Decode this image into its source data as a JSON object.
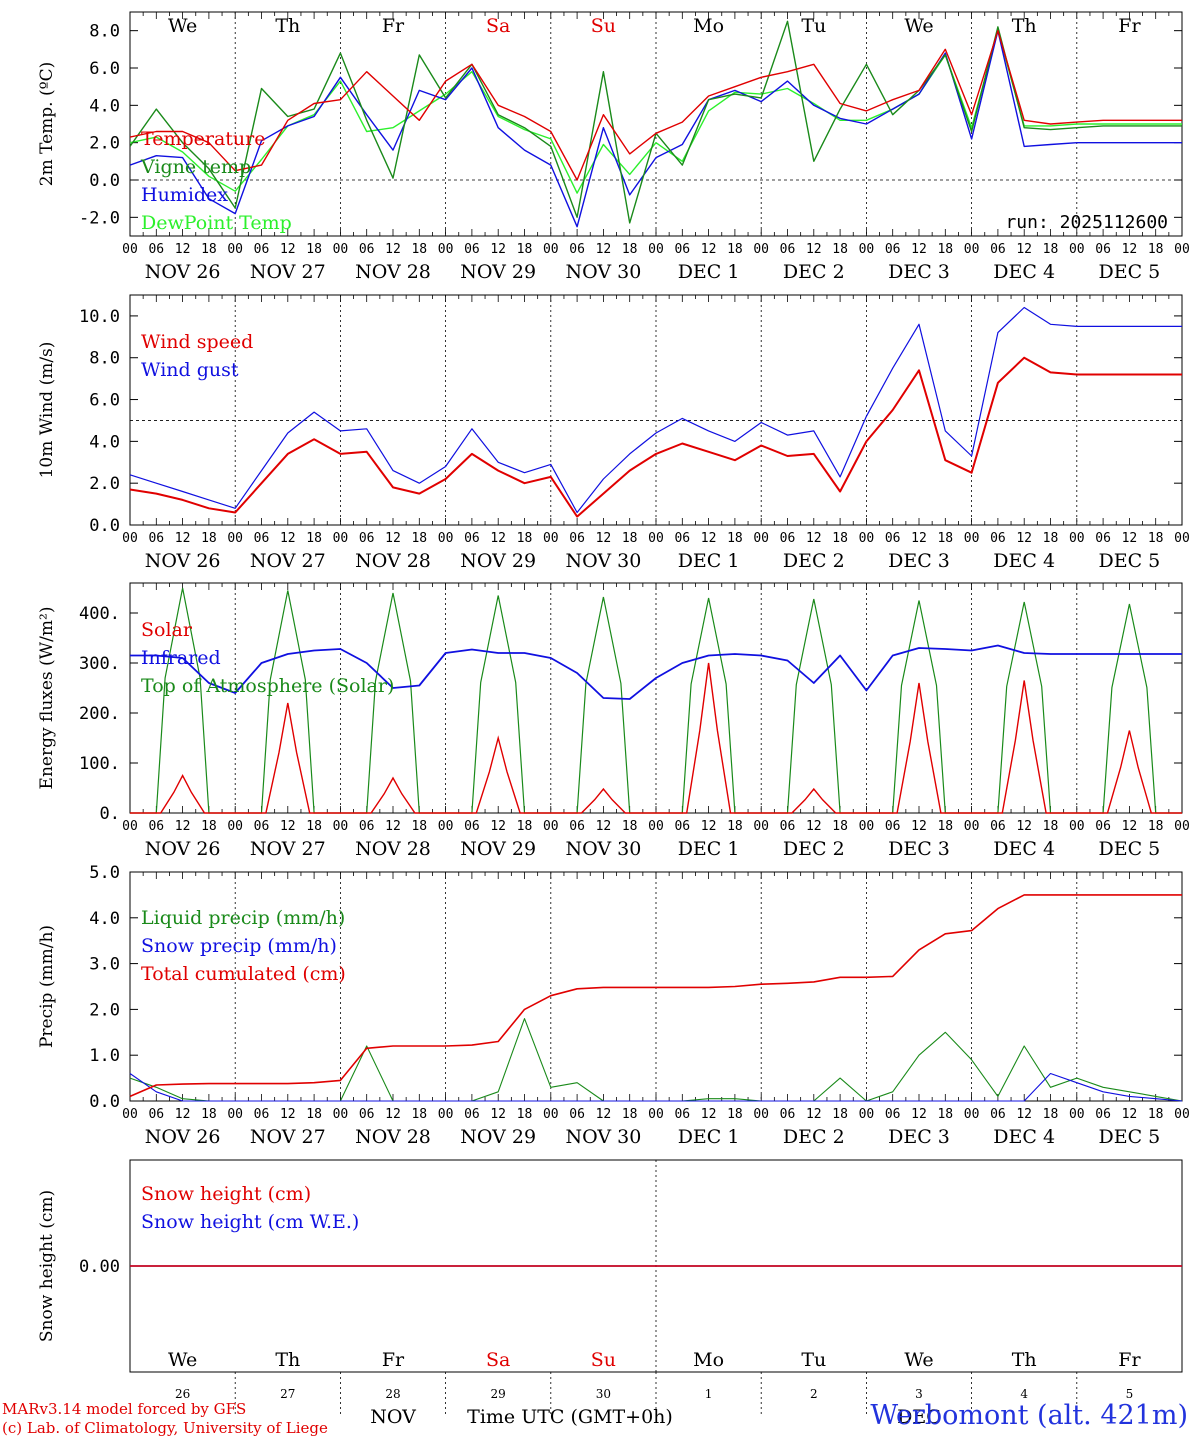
{
  "colors": {
    "red": "#e00000",
    "green": "#1a8a1a",
    "blue": "#1010e0",
    "lightgreen": "#2cf02c",
    "black": "#000000"
  },
  "day_labels": [
    "We",
    "Th",
    "Fr",
    "Sa",
    "Su",
    "Mo",
    "Tu",
    "We",
    "Th",
    "Fr"
  ],
  "weekend_indices": [
    3,
    4
  ],
  "date_labels": [
    "NOV 26",
    "NOV 27",
    "NOV 28",
    "NOV 29",
    "NOV 30",
    "DEC  1",
    "DEC  2",
    "DEC  3",
    "DEC  4",
    "DEC  5"
  ],
  "hour_ticks": [
    "00",
    "06",
    "12",
    "18"
  ],
  "final_tick": "00",
  "bottom_day_numbers": [
    "26",
    "27",
    "28",
    "29",
    "30",
    "1",
    "2",
    "3",
    "4",
    "5"
  ],
  "bottom_months": [
    "NOV",
    "DEC"
  ],
  "xlabel": "Time UTC (GMT+0h)",
  "credits": [
    "MARv3.14 model forced by GFS",
    "(c) Lab. of Climatology, University of Liege"
  ],
  "station": "Werbomont (alt. 421m)",
  "run_label": "run: 2025112600",
  "chart_data": [
    {
      "type": "line",
      "id": "temp",
      "ylabel": "2m Temp. (ºC)",
      "ylim": [
        -3,
        9
      ],
      "yticks": [
        8.0,
        6.0,
        4.0,
        2.0,
        0.0,
        -2.0
      ],
      "ytick_labels": [
        "8.0",
        "6.0",
        "4.0",
        "2.0",
        "0.0",
        "-2.0"
      ],
      "ref_line": 0,
      "x_hours": [
        0,
        6,
        12,
        18,
        24,
        30,
        36,
        42,
        48,
        54,
        60,
        66,
        72,
        78,
        84,
        90,
        96,
        102,
        108,
        114,
        120,
        126,
        132,
        138,
        144,
        150,
        156,
        162,
        168,
        174,
        180,
        186,
        192,
        198,
        204,
        210,
        216,
        222,
        228,
        234,
        240
      ],
      "series": [
        {
          "name": "Temperature",
          "color": "red",
          "values": [
            2.3,
            2.6,
            2.6,
            2.0,
            0.5,
            0.8,
            3.2,
            4.1,
            4.3,
            5.8,
            4.5,
            3.2,
            5.3,
            6.2,
            4.0,
            3.4,
            2.6,
            0.0,
            3.5,
            1.4,
            2.5,
            3.1,
            4.5,
            5.0,
            5.5,
            5.8,
            6.2,
            4.1,
            3.7,
            4.3,
            4.8,
            7.0,
            3.5,
            8.0,
            3.2,
            3.0,
            3.1,
            3.2,
            3.2,
            3.2,
            3.2
          ]
        },
        {
          "name": "Vigne temp",
          "color": "green",
          "values": [
            1.8,
            3.8,
            2.0,
            0.6,
            -1.5,
            4.9,
            3.4,
            3.8,
            6.8,
            3.2,
            0.1,
            6.7,
            4.4,
            6.2,
            3.5,
            2.8,
            1.8,
            -2.0,
            5.8,
            -2.3,
            2.5,
            0.8,
            4.3,
            4.6,
            4.4,
            8.5,
            1.0,
            3.8,
            6.2,
            3.5,
            4.8,
            6.7,
            2.6,
            8.2,
            2.8,
            2.7,
            2.8,
            2.9,
            2.9,
            2.9,
            2.9
          ]
        },
        {
          "name": "Humidex",
          "color": "blue",
          "values": [
            0.8,
            1.3,
            1.2,
            -1.0,
            -1.8,
            2.1,
            2.9,
            3.4,
            5.5,
            3.5,
            1.6,
            4.8,
            4.3,
            6.0,
            2.8,
            1.6,
            0.8,
            -2.5,
            2.8,
            -0.8,
            1.2,
            1.9,
            4.3,
            4.8,
            4.2,
            5.3,
            4.0,
            3.3,
            3.0,
            3.8,
            4.6,
            6.8,
            2.2,
            8.0,
            1.8,
            1.9,
            2.0,
            2.0,
            2.0,
            2.0,
            2.0
          ]
        },
        {
          "name": "DewPoint Temp",
          "color": "lightgreen",
          "values": [
            2.0,
            2.3,
            1.5,
            0.2,
            -0.6,
            1.1,
            2.9,
            3.5,
            5.3,
            2.6,
            2.8,
            3.7,
            4.6,
            5.8,
            3.4,
            2.7,
            2.2,
            -0.7,
            1.9,
            0.3,
            2.0,
            1.0,
            3.7,
            4.7,
            4.6,
            4.9,
            4.1,
            3.2,
            3.2,
            3.8,
            4.6,
            6.7,
            2.8,
            8.0,
            2.9,
            2.9,
            3.0,
            3.0,
            3.0,
            3.0,
            3.0
          ]
        }
      ]
    },
    {
      "type": "line",
      "id": "wind",
      "ylabel": "10m Wind (m/s)",
      "ylim": [
        0,
        11
      ],
      "yticks": [
        10,
        8,
        6,
        4,
        2,
        0
      ],
      "ytick_labels": [
        "10.0",
        "8.0",
        "6.0",
        "4.0",
        "2.0",
        "0.0"
      ],
      "ref_line": 5,
      "x_hours": [
        0,
        6,
        12,
        18,
        24,
        30,
        36,
        42,
        48,
        54,
        60,
        66,
        72,
        78,
        84,
        90,
        96,
        102,
        108,
        114,
        120,
        126,
        132,
        138,
        144,
        150,
        156,
        162,
        168,
        174,
        180,
        186,
        192,
        198,
        204,
        210,
        216,
        222,
        228,
        234,
        240
      ],
      "series": [
        {
          "name": "Wind speed",
          "color": "red",
          "values": [
            1.7,
            1.5,
            1.2,
            0.8,
            0.6,
            2.0,
            3.4,
            4.1,
            3.4,
            3.5,
            1.8,
            1.5,
            2.2,
            3.4,
            2.6,
            2.0,
            2.3,
            0.4,
            1.5,
            2.6,
            3.4,
            3.9,
            3.5,
            3.1,
            3.8,
            3.3,
            3.4,
            1.6,
            4.0,
            5.5,
            7.4,
            3.1,
            2.5,
            6.8,
            8.0,
            7.3,
            7.2,
            7.2,
            7.2,
            7.2,
            7.2
          ]
        },
        {
          "name": "Wind gust",
          "color": "blue",
          "values": [
            2.4,
            2.0,
            1.6,
            1.2,
            0.8,
            2.6,
            4.4,
            5.4,
            4.5,
            4.6,
            2.6,
            2.0,
            2.8,
            4.6,
            3.0,
            2.5,
            2.9,
            0.6,
            2.2,
            3.4,
            4.4,
            5.1,
            4.5,
            4.0,
            4.9,
            4.3,
            4.5,
            2.3,
            5.2,
            7.5,
            9.6,
            4.5,
            3.3,
            9.2,
            10.4,
            9.6,
            9.5,
            9.5,
            9.5,
            9.5,
            9.5
          ]
        }
      ]
    },
    {
      "type": "line",
      "id": "flux",
      "ylabel": "Energy fluxes (W/m²)",
      "ylim": [
        0,
        460
      ],
      "yticks": [
        400,
        300,
        200,
        100,
        0
      ],
      "ytick_labels": [
        "400.",
        "300.",
        "200.",
        "100.",
        "0."
      ],
      "day_peaks": [
        {
          "toa": 450,
          "solar": 75
        },
        {
          "toa": 445,
          "solar": 220
        },
        {
          "toa": 440,
          "solar": 70
        },
        {
          "toa": 435,
          "solar": 150
        },
        {
          "toa": 432,
          "solar": 48
        },
        {
          "toa": 430,
          "solar": 300
        },
        {
          "toa": 428,
          "solar": 48
        },
        {
          "toa": 425,
          "solar": 260
        },
        {
          "toa": 422,
          "solar": 265
        },
        {
          "toa": 418,
          "solar": 165
        }
      ],
      "infrared": [
        315,
        315,
        310,
        260,
        240,
        300,
        318,
        325,
        328,
        300,
        250,
        255,
        320,
        327,
        320,
        320,
        310,
        280,
        230,
        228,
        270,
        300,
        315,
        318,
        315,
        305,
        260,
        315,
        245,
        315,
        330,
        328,
        325,
        335,
        320,
        318,
        318,
        318,
        318,
        318,
        318
      ],
      "series": [
        {
          "name": "Solar",
          "color": "red"
        },
        {
          "name": "Infrared",
          "color": "blue"
        },
        {
          "name": "Top of Atmosphere (Solar)",
          "color": "green"
        }
      ]
    },
    {
      "type": "line",
      "id": "precip",
      "ylabel": "Precip (mm/h)",
      "ylim": [
        0,
        5
      ],
      "yticks": [
        5,
        4,
        3,
        2,
        1,
        0
      ],
      "ytick_labels": [
        "5.0",
        "4.0",
        "3.0",
        "2.0",
        "1.0",
        "0.0"
      ],
      "x_hours": [
        0,
        6,
        12,
        18,
        24,
        30,
        36,
        42,
        48,
        54,
        60,
        66,
        72,
        78,
        84,
        90,
        96,
        102,
        108,
        114,
        120,
        126,
        132,
        138,
        144,
        150,
        156,
        162,
        168,
        174,
        180,
        186,
        192,
        198,
        204,
        210,
        216,
        222,
        228,
        234,
        240
      ],
      "series": [
        {
          "name": "Liquid precip (mm/h)",
          "color": "green",
          "values": [
            0.5,
            0.3,
            0.05,
            0.0,
            0.0,
            0.0,
            0.0,
            0.0,
            0.0,
            1.2,
            0.0,
            0.0,
            0.0,
            0.0,
            0.2,
            1.8,
            0.3,
            0.4,
            0.0,
            0.0,
            0.0,
            0.0,
            0.05,
            0.05,
            0.0,
            0.0,
            0.0,
            0.5,
            0.0,
            0.2,
            1.0,
            1.5,
            0.9,
            0.1,
            1.2,
            0.3,
            0.5,
            0.3,
            0.2,
            0.1,
            0.0
          ]
        },
        {
          "name": "Snow precip (mm/h)",
          "color": "blue",
          "values": [
            0.6,
            0.2,
            0.0,
            0.0,
            0.0,
            0.0,
            0.0,
            0.0,
            0.0,
            0.0,
            0.0,
            0.0,
            0.0,
            0.0,
            0.0,
            0.0,
            0.0,
            0.0,
            0.0,
            0.0,
            0.0,
            0.0,
            0.0,
            0.0,
            0.0,
            0.0,
            0.0,
            0.0,
            0.0,
            0.0,
            0.0,
            0.0,
            0.0,
            0.0,
            0.0,
            0.6,
            0.4,
            0.2,
            0.1,
            0.05,
            0.0
          ]
        },
        {
          "name": "Total cumulated (cm)",
          "color": "red",
          "values": [
            0.1,
            0.35,
            0.37,
            0.38,
            0.38,
            0.38,
            0.38,
            0.4,
            0.45,
            1.15,
            1.2,
            1.2,
            1.2,
            1.22,
            1.3,
            2.0,
            2.3,
            2.45,
            2.48,
            2.48,
            2.48,
            2.48,
            2.48,
            2.5,
            2.55,
            2.57,
            2.6,
            2.7,
            2.7,
            2.72,
            3.3,
            3.65,
            3.72,
            4.2,
            4.5,
            4.5,
            4.5,
            4.5,
            4.5,
            4.5,
            4.5
          ]
        }
      ]
    },
    {
      "type": "line",
      "id": "snow",
      "ylabel": "Snow height (cm)",
      "ylim": [
        -1,
        1
      ],
      "yticks": [
        0
      ],
      "ytick_labels": [
        "0.00"
      ],
      "series": [
        {
          "name": "Snow height (cm)",
          "color": "red",
          "values": [
            0,
            0
          ]
        },
        {
          "name": "Snow height (cm W.E.)",
          "color": "blue",
          "values": [
            0,
            0
          ]
        }
      ]
    }
  ]
}
